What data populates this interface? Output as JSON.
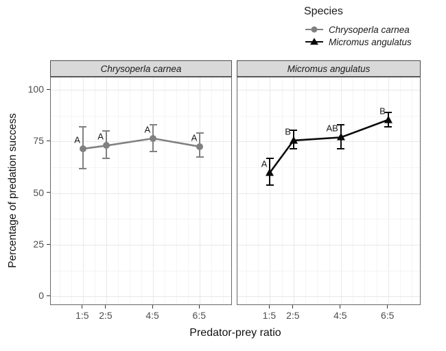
{
  "legend": {
    "title": "Species",
    "items": [
      {
        "label": "Chrysoperla carnea",
        "symbol": "circle-line-key",
        "color": "#808080"
      },
      {
        "label": "Micromus angulatus",
        "symbol": "triangle-line-key",
        "color": "#0a0a0a"
      }
    ]
  },
  "chart_data": {
    "type": "line",
    "title": "",
    "xlabel": "Predator-prey ratio",
    "ylabel": "Percentage of predation success",
    "categories": [
      "1:5",
      "2:5",
      "4:5",
      "6:5"
    ],
    "x_numeric": [
      0.2,
      0.4,
      0.8,
      1.2
    ],
    "xlim": [
      -0.075,
      1.48
    ],
    "yticks": [
      0,
      25,
      50,
      75,
      100
    ],
    "yticks_minor": [
      12.5,
      37.5,
      62.5,
      87.5
    ],
    "ylim": [
      -4.5,
      106
    ],
    "grid": true,
    "legend_position": "top-right",
    "facets": [
      {
        "strip_label": "Chrysoperla carnea",
        "series": "Chrysoperla carnea",
        "color": "#808080",
        "marker": "circle",
        "means": [
          71.5,
          73,
          76.5,
          72.5
        ],
        "err_low": [
          62,
          67,
          70,
          67.5
        ],
        "err_high": [
          82,
          80,
          83,
          79
        ],
        "sig_letters": [
          "A",
          "A",
          "A",
          "A"
        ]
      },
      {
        "strip_label": "Micromus angulatus",
        "series": "Micromus angulatus",
        "color": "#0a0a0a",
        "marker": "triangle",
        "means": [
          60,
          75.5,
          77,
          85.5
        ],
        "err_low": [
          54,
          71.5,
          71.5,
          82
        ],
        "err_high": [
          67,
          80.5,
          83,
          89
        ],
        "sig_letters": [
          "A",
          "B",
          "AB",
          "B"
        ]
      }
    ]
  },
  "colors": {
    "strip_background": "#d9d9d9",
    "panel_border": "#666666",
    "grid_major": "#e8e8e8",
    "grid_minor": "#f4f4f4",
    "axis_text": "#4d4d4d"
  }
}
